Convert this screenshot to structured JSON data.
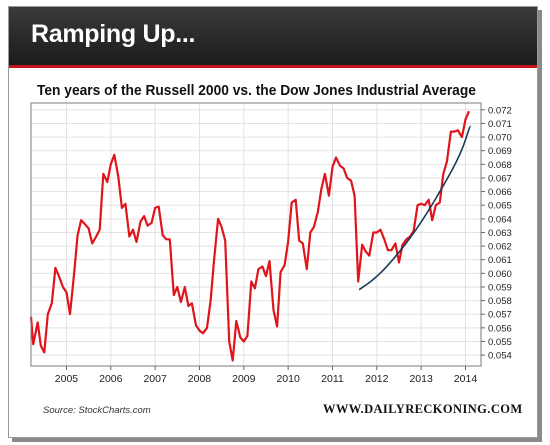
{
  "header": {
    "title": "Ramping Up..."
  },
  "source": "Source: StockCharts.com",
  "website": "WWW.DAILYRECKONING.COM",
  "colors": {
    "line": "#e0151b",
    "trend": "#1a3a5c",
    "header_bg": "#262626",
    "accent": "#c4141c"
  },
  "chart_data": {
    "type": "line",
    "title": "Ten years of the Russell 2000 vs. the Dow Jones Industrial Average",
    "xlabel": "",
    "ylabel": "",
    "xlim": [
      2004.2,
      2014.35
    ],
    "ylim": [
      0.0532,
      0.0725
    ],
    "x_ticks": [
      "2005",
      "2006",
      "2007",
      "2008",
      "2009",
      "2010",
      "2011",
      "2012",
      "2013",
      "2014"
    ],
    "y_ticks": [
      "0.054",
      "0.055",
      "0.056",
      "0.057",
      "0.058",
      "0.059",
      "0.060",
      "0.061",
      "0.062",
      "0.063",
      "0.064",
      "0.065",
      "0.066",
      "0.067",
      "0.068",
      "0.069",
      "0.070",
      "0.071",
      "0.072"
    ],
    "grid": true,
    "series": [
      {
        "points": [
          [
            2004.2,
            0.0568
          ],
          [
            2004.25,
            0.0548
          ],
          [
            2004.35,
            0.0564
          ],
          [
            2004.42,
            0.0547
          ],
          [
            2004.5,
            0.0542
          ],
          [
            2004.58,
            0.057
          ],
          [
            2004.67,
            0.0578
          ],
          [
            2004.75,
            0.0604
          ],
          [
            2004.83,
            0.0598
          ],
          [
            2004.92,
            0.059
          ],
          [
            2005.0,
            0.0586
          ],
          [
            2005.08,
            0.057
          ],
          [
            2005.17,
            0.0599
          ],
          [
            2005.25,
            0.0628
          ],
          [
            2005.33,
            0.0639
          ],
          [
            2005.42,
            0.0636
          ],
          [
            2005.5,
            0.0633
          ],
          [
            2005.58,
            0.0622
          ],
          [
            2005.67,
            0.0627
          ],
          [
            2005.75,
            0.0632
          ],
          [
            2005.83,
            0.0673
          ],
          [
            2005.92,
            0.0667
          ],
          [
            2006.0,
            0.068
          ],
          [
            2006.08,
            0.0687
          ],
          [
            2006.17,
            0.0671
          ],
          [
            2006.25,
            0.0648
          ],
          [
            2006.33,
            0.0651
          ],
          [
            2006.42,
            0.0627
          ],
          [
            2006.5,
            0.0632
          ],
          [
            2006.58,
            0.0623
          ],
          [
            2006.67,
            0.0638
          ],
          [
            2006.75,
            0.0642
          ],
          [
            2006.83,
            0.0635
          ],
          [
            2006.92,
            0.0637
          ],
          [
            2007.0,
            0.0648
          ],
          [
            2007.08,
            0.0649
          ],
          [
            2007.17,
            0.0628
          ],
          [
            2007.25,
            0.0625
          ],
          [
            2007.33,
            0.0625
          ],
          [
            2007.42,
            0.0584
          ],
          [
            2007.5,
            0.059
          ],
          [
            2007.58,
            0.0579
          ],
          [
            2007.67,
            0.059
          ],
          [
            2007.75,
            0.0576
          ],
          [
            2007.83,
            0.0578
          ],
          [
            2007.92,
            0.0562
          ],
          [
            2008.0,
            0.0558
          ],
          [
            2008.08,
            0.0556
          ],
          [
            2008.17,
            0.056
          ],
          [
            2008.25,
            0.058
          ],
          [
            2008.33,
            0.061
          ],
          [
            2008.42,
            0.064
          ],
          [
            2008.5,
            0.0634
          ],
          [
            2008.58,
            0.0624
          ],
          [
            2008.67,
            0.055
          ],
          [
            2008.75,
            0.0536
          ],
          [
            2008.83,
            0.0565
          ],
          [
            2008.92,
            0.0553
          ],
          [
            2009.0,
            0.055
          ],
          [
            2009.08,
            0.0554
          ],
          [
            2009.17,
            0.0594
          ],
          [
            2009.25,
            0.0589
          ],
          [
            2009.33,
            0.0603
          ],
          [
            2009.42,
            0.0605
          ],
          [
            2009.5,
            0.0598
          ],
          [
            2009.58,
            0.0609
          ],
          [
            2009.67,
            0.0573
          ],
          [
            2009.75,
            0.0561
          ],
          [
            2009.83,
            0.0601
          ],
          [
            2009.92,
            0.0606
          ],
          [
            2010.0,
            0.0623
          ],
          [
            2010.08,
            0.0652
          ],
          [
            2010.17,
            0.0654
          ],
          [
            2010.25,
            0.0624
          ],
          [
            2010.33,
            0.0622
          ],
          [
            2010.42,
            0.0603
          ],
          [
            2010.5,
            0.063
          ],
          [
            2010.58,
            0.0634
          ],
          [
            2010.67,
            0.0645
          ],
          [
            2010.75,
            0.0662
          ],
          [
            2010.83,
            0.0673
          ],
          [
            2010.92,
            0.0657
          ],
          [
            2011.0,
            0.0678
          ],
          [
            2011.08,
            0.0685
          ],
          [
            2011.17,
            0.0679
          ],
          [
            2011.25,
            0.0677
          ],
          [
            2011.33,
            0.067
          ],
          [
            2011.42,
            0.0668
          ],
          [
            2011.5,
            0.0657
          ],
          [
            2011.58,
            0.0594
          ],
          [
            2011.67,
            0.0621
          ],
          [
            2011.75,
            0.0616
          ],
          [
            2011.83,
            0.0613
          ],
          [
            2011.92,
            0.063
          ],
          [
            2012.0,
            0.063
          ],
          [
            2012.08,
            0.0632
          ],
          [
            2012.17,
            0.0625
          ],
          [
            2012.25,
            0.0617
          ],
          [
            2012.33,
            0.0617
          ],
          [
            2012.42,
            0.0622
          ],
          [
            2012.5,
            0.0608
          ],
          [
            2012.58,
            0.0621
          ],
          [
            2012.67,
            0.0625
          ],
          [
            2012.75,
            0.0627
          ],
          [
            2012.83,
            0.0631
          ],
          [
            2012.92,
            0.065
          ],
          [
            2013.0,
            0.0651
          ],
          [
            2013.08,
            0.065
          ],
          [
            2013.17,
            0.0654
          ],
          [
            2013.25,
            0.0639
          ],
          [
            2013.33,
            0.065
          ],
          [
            2013.42,
            0.0652
          ],
          [
            2013.5,
            0.0673
          ],
          [
            2013.58,
            0.0682
          ],
          [
            2013.67,
            0.0704
          ],
          [
            2013.75,
            0.0704
          ],
          [
            2013.83,
            0.0705
          ],
          [
            2013.92,
            0.07
          ],
          [
            2014.0,
            0.0713
          ],
          [
            2014.08,
            0.0719
          ]
        ]
      }
    ],
    "trendline": [
      [
        2011.6,
        0.0588
      ],
      [
        2012.0,
        0.0597
      ],
      [
        2012.5,
        0.0615
      ],
      [
        2013.0,
        0.0637
      ],
      [
        2013.5,
        0.0664
      ],
      [
        2013.9,
        0.0688
      ],
      [
        2014.1,
        0.0708
      ]
    ]
  }
}
